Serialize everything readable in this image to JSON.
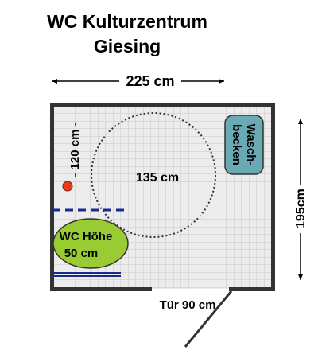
{
  "title": {
    "line1": "WC Kulturzentrum",
    "line2": "Giesing"
  },
  "dimensions": {
    "width": "225 cm",
    "depth": "195cm",
    "door": "Tür 90 cm"
  },
  "turning_circle": "135 cm",
  "distance_marker": "- 120 cm -",
  "sink": {
    "line1": "Wasch-",
    "line2": "becken"
  },
  "toilet": {
    "line1": "WC Höhe",
    "line2": "50 cm"
  },
  "colors": {
    "wall": "#333333",
    "grid": "#c8c8c8",
    "floor": "#ececec",
    "toilet_fill": "#99cc33",
    "sink_fill": "#6aaab4",
    "marker_red": "#e83a1c",
    "rail_blue": "#1a2a8c"
  }
}
